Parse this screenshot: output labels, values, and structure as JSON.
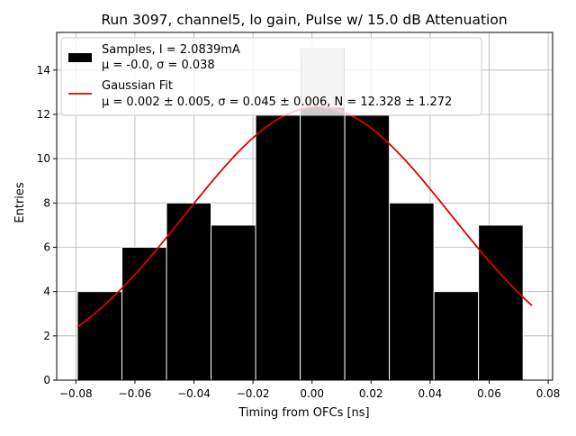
{
  "chart_data": {
    "type": "bar",
    "title": "Run 3097, channel5, lo gain, Pulse w/ 15.0 dB Attenuation",
    "xlabel": "Timing from OFCs [ns]",
    "ylabel": "Entries",
    "xlim": [
      -0.0865,
      0.0815
    ],
    "ylim": [
      0,
      15.7
    ],
    "x_ticks": [
      -0.08,
      -0.06,
      -0.04,
      -0.02,
      0.0,
      0.02,
      0.04,
      0.06,
      0.08
    ],
    "x_tick_labels": [
      "−0.08",
      "−0.06",
      "−0.04",
      "−0.02",
      "0.00",
      "0.02",
      "0.04",
      "0.06",
      "0.08"
    ],
    "y_ticks": [
      0,
      2,
      4,
      6,
      8,
      10,
      12,
      14
    ],
    "y_tick_labels": [
      "0",
      "2",
      "4",
      "6",
      "8",
      "10",
      "12",
      "14"
    ],
    "grid": true,
    "legend_position": "top-left",
    "colors": {
      "histogram": "#000000",
      "fit": "#e00000",
      "grid": "#b0b0b0",
      "highlight": "#c8c8c8"
    },
    "histogram": {
      "name": "Samples, I = 2.0839mA",
      "stats": "μ = -0.0, σ = 0.038",
      "bin_edges": [
        -0.0795,
        -0.0644,
        -0.0493,
        -0.0342,
        -0.0191,
        -0.004,
        0.0111,
        0.0262,
        0.0413,
        0.0564,
        0.0715
      ],
      "counts": [
        4,
        6,
        8,
        7,
        12,
        15,
        12,
        8,
        4,
        7
      ]
    },
    "fit": {
      "name": "Gaussian Fit",
      "params": "μ = 0.002 ± 0.005, σ = 0.045 ± 0.006, N = 12.328 ± 1.272",
      "mu": 0.002,
      "sigma": 0.045,
      "N": 12.328,
      "x_range": [
        -0.0795,
        0.0745
      ]
    }
  }
}
